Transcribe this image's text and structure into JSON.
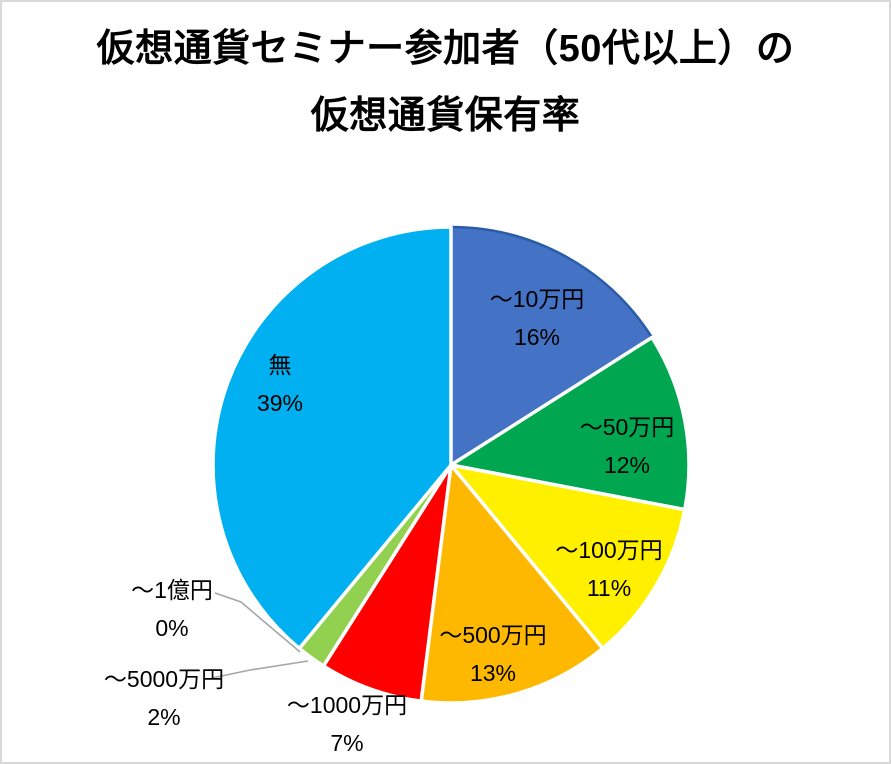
{
  "chart_data": {
    "type": "pie",
    "title": "仮想通貨セミナー参加者（50代以上）の仮想通貨保有率",
    "title_lines": [
      "仮想通貨セミナー参加者（50代以上）の",
      "仮想通貨保有率"
    ],
    "legend": "none",
    "data_label_style": "category name + percentage, inside slices (small slices use gray leader-line callouts)",
    "start_angle_deg": 0,
    "direction": "clockwise",
    "segments": [
      {
        "label": "～10万円",
        "value": 16,
        "pct_label": "16%",
        "color": "#4472C4",
        "border": "#2A5CAA"
      },
      {
        "label": "～50万円",
        "value": 12,
        "pct_label": "12%",
        "color": "#00A650",
        "border": "#FFFFFF"
      },
      {
        "label": "～100万円",
        "value": 11,
        "pct_label": "11%",
        "color": "#FFF000",
        "border": "#FFFFFF"
      },
      {
        "label": "～500万円",
        "value": 13,
        "pct_label": "13%",
        "color": "#FFB800",
        "border": "#FFFFFF"
      },
      {
        "label": "～1000万円",
        "value": 7,
        "pct_label": "7%",
        "color": "#FF0000",
        "border": "#FFFFFF"
      },
      {
        "label": "～5000万円",
        "value": 2,
        "pct_label": "2%",
        "color": "#92D050",
        "border": "#FFFFFF"
      },
      {
        "label": "～1億円",
        "value": 0,
        "pct_label": "0%",
        "color": "#92D050",
        "border": "#FFFFFF"
      },
      {
        "label": "無",
        "value": 39,
        "pct_label": "39%",
        "color": "#00B0F0",
        "border": "#FFFFFF"
      }
    ],
    "colors": {
      "title_text": "#000000",
      "label_text": "#000000",
      "leader_line": "#A6A6A6",
      "frame_border": "#D9D9D9",
      "background": "#FFFFFF"
    }
  }
}
